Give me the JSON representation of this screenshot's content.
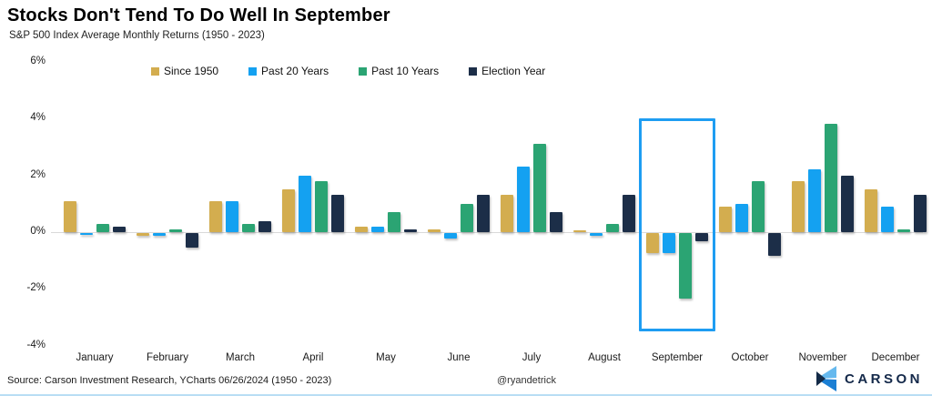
{
  "header": {
    "title": "Stocks Don't Tend To Do Well In September",
    "subtitle": "S&P 500 Index Average Monthly Returns (1950 - 2023)"
  },
  "chart_data": {
    "type": "bar",
    "title": "Stocks Don't Tend To Do Well In September",
    "subtitle": "S&P 500 Index Average Monthly Returns (1950 - 2023)",
    "categories": [
      "January",
      "February",
      "March",
      "April",
      "May",
      "June",
      "July",
      "August",
      "September",
      "October",
      "November",
      "December"
    ],
    "series": [
      {
        "name": "Since 1950",
        "color": "#d3ad4f",
        "values": [
          1.1,
          -0.1,
          1.1,
          1.5,
          0.2,
          0.1,
          1.3,
          0.05,
          -0.7,
          0.9,
          1.8,
          1.5
        ]
      },
      {
        "name": "Past 20 Years",
        "color": "#14a1f1",
        "values": [
          -0.05,
          -0.1,
          1.1,
          2.0,
          0.2,
          -0.2,
          2.3,
          -0.1,
          -0.7,
          1.0,
          2.2,
          0.9
        ]
      },
      {
        "name": "Past 10 Years",
        "color": "#2ba473",
        "values": [
          0.3,
          0.1,
          0.3,
          1.8,
          0.7,
          1.0,
          3.1,
          0.3,
          -2.3,
          1.8,
          3.8,
          0.1
        ]
      },
      {
        "name": "Election Year",
        "color": "#1c2e48",
        "values": [
          0.2,
          -0.5,
          0.4,
          1.3,
          0.1,
          1.3,
          0.7,
          1.3,
          -0.3,
          -0.8,
          2.0,
          1.3
        ]
      }
    ],
    "y_axis": {
      "ticks": [
        {
          "label": "6%",
          "value": 6
        },
        {
          "label": "4%",
          "value": 4
        },
        {
          "label": "2%",
          "value": 2
        },
        {
          "label": "0%",
          "value": 0
        },
        {
          "label": "-2%",
          "value": -2
        },
        {
          "label": "-4%",
          "value": -4
        }
      ],
      "ylim": [
        -4,
        6
      ]
    },
    "grid": "zero-line-only",
    "legend_position": "top",
    "highlight_month": "September",
    "highlight_color": "#1e9df2"
  },
  "footer": {
    "source": "Source: Carson Investment Research, YCharts 06/26/2024 (1950 - 2023)",
    "handle": "@ryandetrick",
    "brand": "CARSON"
  },
  "colors": {
    "since_1950": "#d3ad4f",
    "past_20_years": "#14a1f1",
    "past_10_years": "#2ba473",
    "election_year": "#1c2e48",
    "highlight_border": "#1e9df2",
    "axis_line": "#d9d9d9",
    "brand_navy": "#14294a",
    "brand_light_blue": "#66b9ee",
    "brand_mid_blue": "#1b7fd4"
  }
}
